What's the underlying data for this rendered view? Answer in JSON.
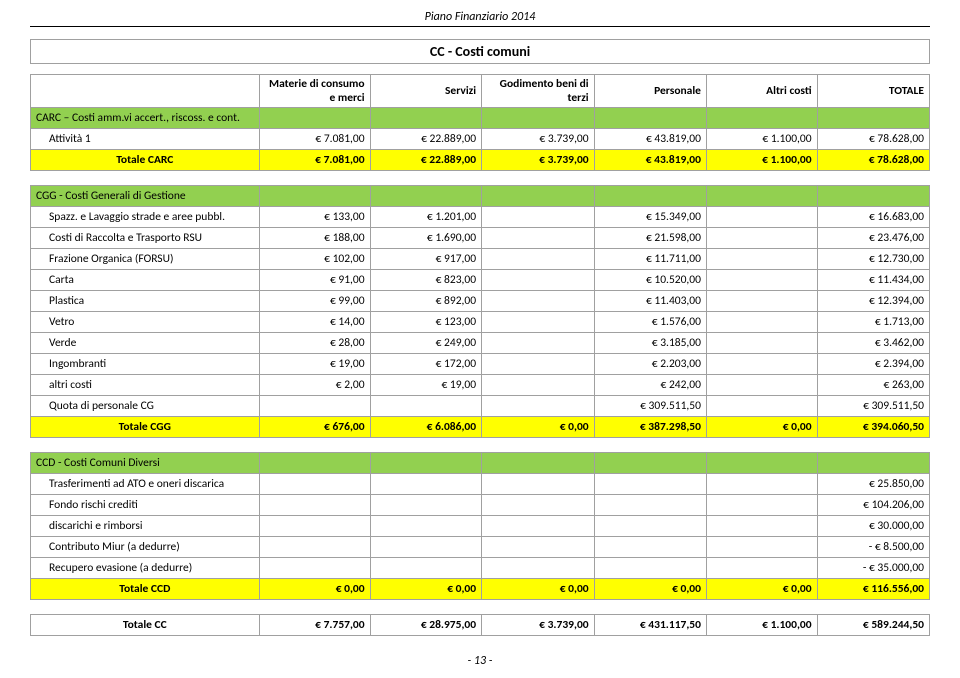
{
  "doc_header": "Piano Finanziario 2014",
  "title": "CC - Costi comuni",
  "columns": [
    "Materie di consumo e merci",
    "Servizi",
    "Godimento beni di terzi",
    "Personale",
    "Altri costi",
    "TOTALE"
  ],
  "carc": {
    "header": "CARC – Costi amm.vi accert., riscoss. e cont.",
    "rows": [
      {
        "label": "Attività 1",
        "c": [
          "€ 7.081,00",
          "€ 22.889,00",
          "€ 3.739,00",
          "€ 43.819,00",
          "€ 1.100,00",
          "€ 78.628,00"
        ]
      }
    ],
    "total": {
      "label": "Totale CARC",
      "c": [
        "€ 7.081,00",
        "€ 22.889,00",
        "€ 3.739,00",
        "€ 43.819,00",
        "€ 1.100,00",
        "€ 78.628,00"
      ]
    }
  },
  "cgg": {
    "header": "CGG - Costi Generali di Gestione",
    "rows": [
      {
        "label": "Spazz. e Lavaggio strade e aree pubbl.",
        "c": [
          "€ 133,00",
          "€ 1.201,00",
          "",
          "€ 15.349,00",
          "",
          "€ 16.683,00"
        ]
      },
      {
        "label": "Costi di Raccolta e Trasporto RSU",
        "c": [
          "€ 188,00",
          "€ 1.690,00",
          "",
          "€ 21.598,00",
          "",
          "€ 23.476,00"
        ]
      },
      {
        "label": "Frazione Organica (FORSU)",
        "c": [
          "€ 102,00",
          "€ 917,00",
          "",
          "€ 11.711,00",
          "",
          "€ 12.730,00"
        ]
      },
      {
        "label": "Carta",
        "c": [
          "€ 91,00",
          "€ 823,00",
          "",
          "€ 10.520,00",
          "",
          "€ 11.434,00"
        ]
      },
      {
        "label": "Plastica",
        "c": [
          "€ 99,00",
          "€ 892,00",
          "",
          "€ 11.403,00",
          "",
          "€ 12.394,00"
        ]
      },
      {
        "label": "Vetro",
        "c": [
          "€ 14,00",
          "€ 123,00",
          "",
          "€ 1.576,00",
          "",
          "€ 1.713,00"
        ]
      },
      {
        "label": "Verde",
        "c": [
          "€ 28,00",
          "€ 249,00",
          "",
          "€ 3.185,00",
          "",
          "€ 3.462,00"
        ]
      },
      {
        "label": "Ingombranti",
        "c": [
          "€ 19,00",
          "€ 172,00",
          "",
          "€ 2.203,00",
          "",
          "€ 2.394,00"
        ]
      },
      {
        "label": "altri costi",
        "c": [
          "€ 2,00",
          "€ 19,00",
          "",
          "€ 242,00",
          "",
          "€ 263,00"
        ]
      },
      {
        "label": "Quota  di personale CG",
        "c": [
          "",
          "",
          "",
          "€ 309.511,50",
          "",
          "€ 309.511,50"
        ]
      }
    ],
    "total": {
      "label": "Totale CGG",
      "c": [
        "€ 676,00",
        "€ 6.086,00",
        "€ 0,00",
        "€ 387.298,50",
        "€ 0,00",
        "€ 394.060,50"
      ]
    }
  },
  "ccd": {
    "header": "CCD - Costi Comuni Diversi",
    "rows": [
      {
        "label": "Trasferimenti ad ATO e oneri discarica",
        "c": [
          "",
          "",
          "",
          "",
          "",
          "€ 25.850,00"
        ]
      },
      {
        "label": "Fondo rischi crediti",
        "c": [
          "",
          "",
          "",
          "",
          "",
          "€ 104.206,00"
        ]
      },
      {
        "label": "discarichi e rimborsi",
        "c": [
          "",
          "",
          "",
          "",
          "",
          "€ 30.000,00"
        ]
      },
      {
        "label": "Contributo Miur (a dedurre)",
        "c": [
          "",
          "",
          "",
          "",
          "",
          "- € 8.500,00"
        ]
      },
      {
        "label": "Recupero evasione (a dedurre)",
        "c": [
          "",
          "",
          "",
          "",
          "",
          "- € 35.000,00"
        ]
      }
    ],
    "total": {
      "label": "Totale CCD",
      "c": [
        "€ 0,00",
        "€ 0,00",
        "€ 0,00",
        "€ 0,00",
        "€ 0,00",
        "€ 116.556,00"
      ]
    }
  },
  "grand_total": {
    "label": "Totale CC",
    "c": [
      "€ 7.757,00",
      "€ 28.975,00",
      "€ 3.739,00",
      "€ 431.117,50",
      "€ 1.100,00",
      "€ 589.244,50"
    ]
  },
  "footer_page": "- 13 -",
  "colors": {
    "green": "#92d050",
    "yellow": "#ffff00",
    "border": "#a0a0a0"
  }
}
